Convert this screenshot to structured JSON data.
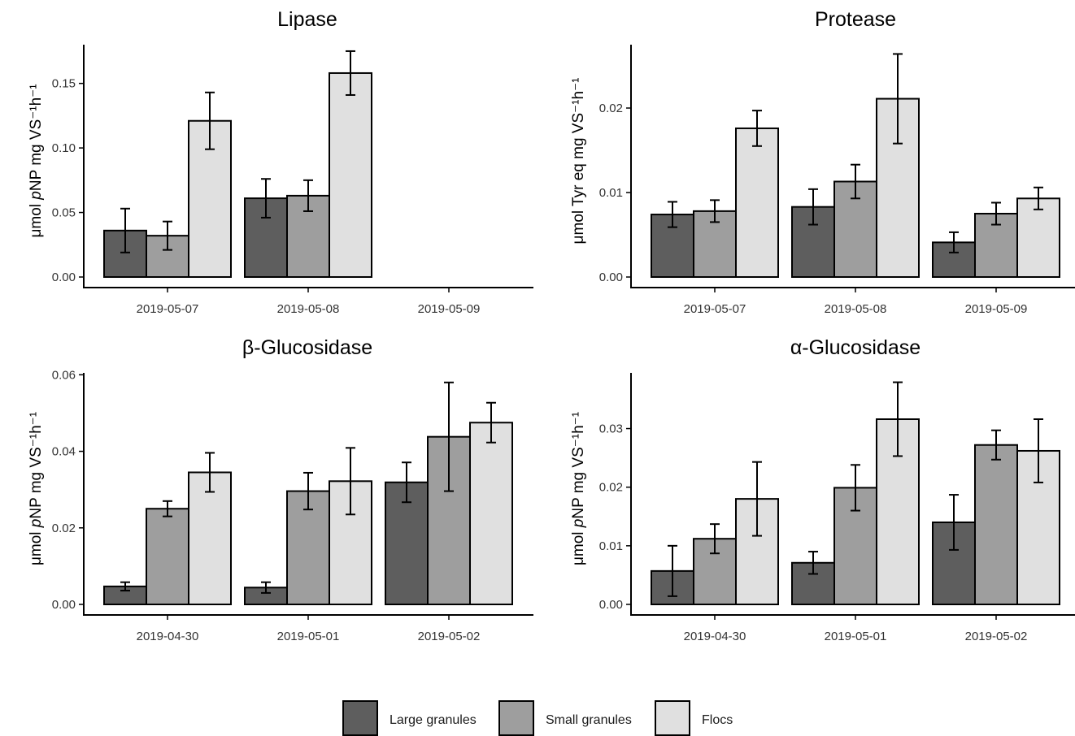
{
  "chart_data": [
    {
      "type": "bar",
      "title": "Lipase",
      "ylabel": "μmol pNP mg VS⁻¹h⁻¹",
      "categories": [
        "2019-05-07",
        "2019-05-08",
        "2019-05-09"
      ],
      "ylim": [
        0,
        0.18
      ],
      "yticks": [
        0.0,
        0.05,
        0.1,
        0.15
      ],
      "ytick_labels": [
        "0.00",
        "0.05",
        "0.10",
        "0.15"
      ],
      "series": [
        {
          "name": "Large granules",
          "values": [
            0.036,
            0.061,
            0.0
          ],
          "errors": [
            0.017,
            0.015,
            0.0
          ]
        },
        {
          "name": "Small granules",
          "values": [
            0.032,
            0.063,
            0.0
          ],
          "errors": [
            0.011,
            0.012,
            0.0
          ]
        },
        {
          "name": "Flocs",
          "values": [
            0.121,
            0.158,
            0.0
          ],
          "errors": [
            0.022,
            0.017,
            0.0
          ]
        }
      ]
    },
    {
      "type": "bar",
      "title": "Protease",
      "ylabel": "μmol Tyr eq mg VS⁻¹h⁻¹",
      "categories": [
        "2019-05-07",
        "2019-05-08",
        "2019-05-09"
      ],
      "ylim": [
        0,
        0.0275
      ],
      "yticks": [
        0.0,
        0.01,
        0.02
      ],
      "ytick_labels": [
        "0.00",
        "0.01",
        "0.02"
      ],
      "series": [
        {
          "name": "Large granules",
          "values": [
            0.0074,
            0.0083,
            0.0041
          ],
          "errors": [
            0.0015,
            0.0021,
            0.0012
          ]
        },
        {
          "name": "Small granules",
          "values": [
            0.0078,
            0.0113,
            0.0075
          ],
          "errors": [
            0.0013,
            0.002,
            0.0013
          ]
        },
        {
          "name": "Flocs",
          "values": [
            0.0176,
            0.0211,
            0.0093
          ],
          "errors": [
            0.0021,
            0.0053,
            0.0013
          ]
        }
      ]
    },
    {
      "type": "bar",
      "title": "β-Glucosidase",
      "ylabel": "μmol pNP mg VS⁻¹h⁻¹",
      "categories": [
        "2019-04-30",
        "2019-05-01",
        "2019-05-02"
      ],
      "ylim": [
        0,
        0.0605
      ],
      "yticks": [
        0.0,
        0.02,
        0.04,
        0.06
      ],
      "ytick_labels": [
        "0.00",
        "0.02",
        "0.04",
        "0.06"
      ],
      "series": [
        {
          "name": "Large granules",
          "values": [
            0.0047,
            0.0044,
            0.0319
          ],
          "errors": [
            0.0011,
            0.0014,
            0.0052
          ]
        },
        {
          "name": "Small granules",
          "values": [
            0.025,
            0.0296,
            0.0438
          ],
          "errors": [
            0.002,
            0.0048,
            0.0142
          ]
        },
        {
          "name": "Flocs",
          "values": [
            0.0345,
            0.0322,
            0.0475
          ],
          "errors": [
            0.0051,
            0.0087,
            0.0052
          ]
        }
      ]
    },
    {
      "type": "bar",
      "title": "α-Glucosidase",
      "ylabel": "μmol pNP mg VS⁻¹h⁻¹",
      "categories": [
        "2019-04-30",
        "2019-05-01",
        "2019-05-02"
      ],
      "ylim": [
        0,
        0.0395
      ],
      "yticks": [
        0.0,
        0.01,
        0.02,
        0.03
      ],
      "ytick_labels": [
        "0.00",
        "0.01",
        "0.02",
        "0.03"
      ],
      "series": [
        {
          "name": "Large granules",
          "values": [
            0.0057,
            0.0071,
            0.014
          ],
          "errors": [
            0.0043,
            0.0019,
            0.0047
          ]
        },
        {
          "name": "Small granules",
          "values": [
            0.0112,
            0.0199,
            0.0272
          ],
          "errors": [
            0.0025,
            0.0039,
            0.0025
          ]
        },
        {
          "name": "Flocs",
          "values": [
            0.018,
            0.0316,
            0.0262
          ],
          "errors": [
            0.0063,
            0.0063,
            0.0054
          ]
        }
      ]
    }
  ],
  "legend": {
    "placement": "bottom",
    "items": [
      {
        "label": "Large granules",
        "color": "#5e5e5e"
      },
      {
        "label": "Small granules",
        "color": "#9e9e9e"
      },
      {
        "label": "Flocs",
        "color": "#e0e0e0"
      }
    ]
  },
  "colors": {
    "large": "#5e5e5e",
    "small": "#9e9e9e",
    "flocs": "#e0e0e0",
    "axis": "#000000",
    "text": "#1a1a1a"
  }
}
